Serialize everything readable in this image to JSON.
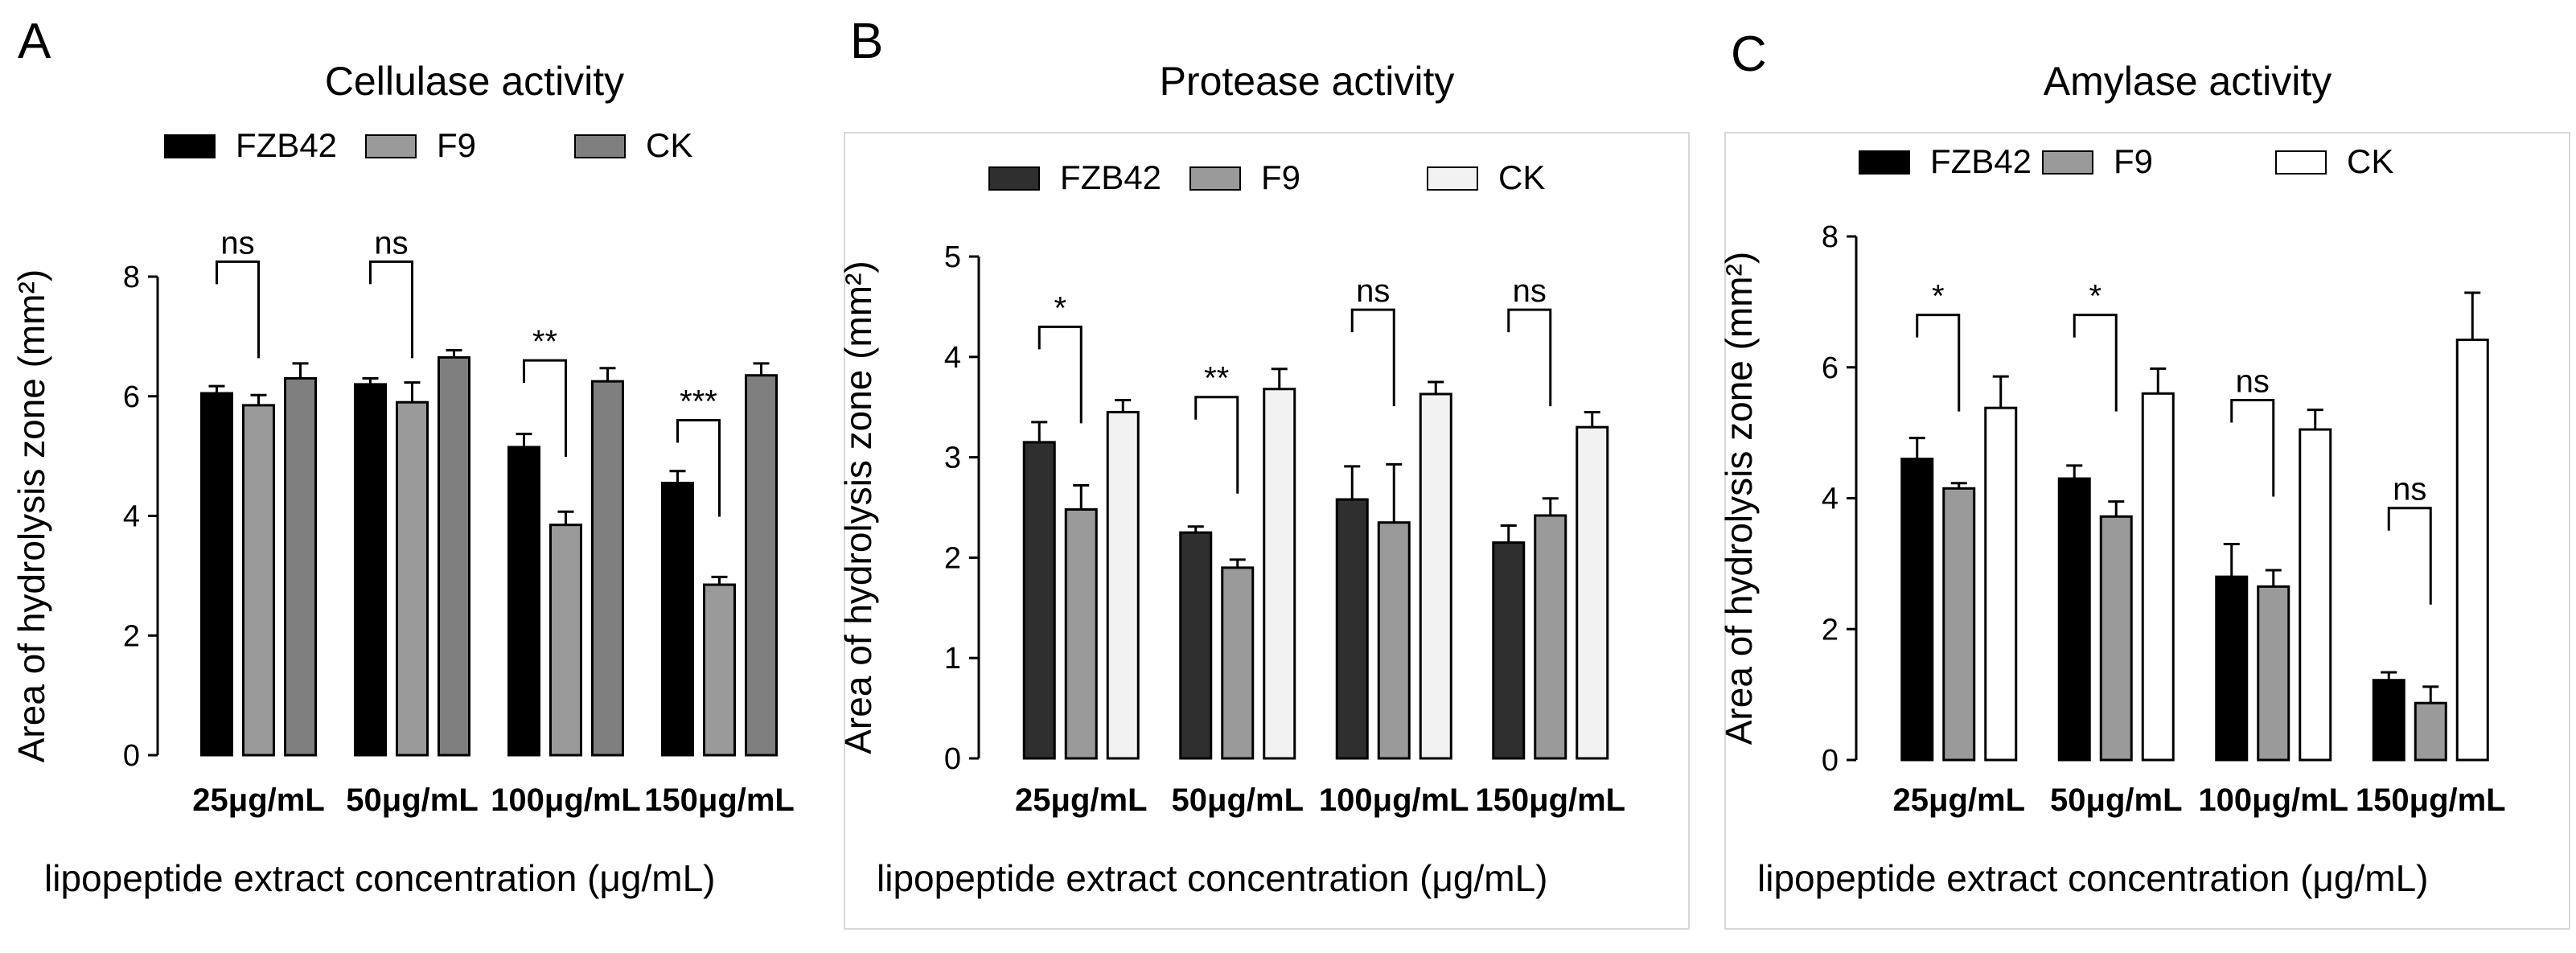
{
  "chart_data": [
    {
      "type": "bar",
      "panel_letter": "A",
      "title": "Cellulase activity",
      "xlabel": "lipopeptide extract concentration (μg/mL)",
      "ylabel": "Area of hydrolysis zone (mm²)",
      "ylim": [
        0,
        8
      ],
      "yticks": [
        "0",
        "2",
        "4",
        "6",
        "8"
      ],
      "categories": [
        "25μg/mL",
        "50μg/mL",
        "100μg/mL",
        "150μg/mL"
      ],
      "legend": [
        "FZB42",
        "F9",
        "CK"
      ],
      "series": [
        {
          "name": "FZB42",
          "color": "#000000",
          "values": [
            6.05,
            6.2,
            5.15,
            4.55
          ],
          "errors": [
            0.12,
            0.1,
            0.22,
            0.2
          ]
        },
        {
          "name": "F9",
          "color": "#9a9a9a",
          "values": [
            5.85,
            5.9,
            3.85,
            2.85
          ],
          "errors": [
            0.17,
            0.33,
            0.22,
            0.13
          ]
        },
        {
          "name": "CK",
          "color": "#7f7f7f",
          "values": [
            6.3,
            6.65,
            6.25,
            6.35
          ],
          "errors": [
            0.25,
            0.12,
            0.22,
            0.2
          ]
        }
      ],
      "significance": [
        {
          "category": 0,
          "label": "ns",
          "y": 8.25
        },
        {
          "category": 1,
          "label": "ns",
          "y": 8.25
        },
        {
          "category": 2,
          "label": "**",
          "y": 6.6
        },
        {
          "category": 3,
          "label": "***",
          "y": 5.6
        }
      ]
    },
    {
      "type": "bar",
      "panel_letter": "B",
      "title": "Protease activity",
      "xlabel": "lipopeptide extract concentration (μg/mL)",
      "ylabel": "Area of hydrolysis zone (mm²)",
      "ylim": [
        0,
        5
      ],
      "yticks": [
        "0",
        "1",
        "2",
        "3",
        "4",
        "5"
      ],
      "categories": [
        "25μg/mL",
        "50μg/mL",
        "100μg/mL",
        "150μg/mL"
      ],
      "legend": [
        "FZB42",
        "F9",
        "CK"
      ],
      "series": [
        {
          "name": "FZB42",
          "color": "#2f2f2f",
          "values": [
            3.15,
            2.25,
            2.58,
            2.15
          ],
          "errors": [
            0.2,
            0.06,
            0.33,
            0.17
          ]
        },
        {
          "name": "F9",
          "color": "#9a9a9a",
          "values": [
            2.48,
            1.9,
            2.35,
            2.42
          ],
          "errors": [
            0.24,
            0.08,
            0.58,
            0.17
          ]
        },
        {
          "name": "CK",
          "color": "#f2f2f2",
          "values": [
            3.45,
            3.68,
            3.63,
            3.3
          ],
          "errors": [
            0.12,
            0.2,
            0.12,
            0.15
          ]
        }
      ],
      "significance": [
        {
          "category": 0,
          "label": "*",
          "y": 4.3
        },
        {
          "category": 1,
          "label": "**",
          "y": 3.6
        },
        {
          "category": 2,
          "label": "ns",
          "y": 4.47
        },
        {
          "category": 3,
          "label": "ns",
          "y": 4.47
        }
      ]
    },
    {
      "type": "bar",
      "panel_letter": "C",
      "title": "Amylase activity",
      "xlabel": "lipopeptide extract concentration (μg/mL)",
      "ylabel": "Area of hydrolysis zone (mm²)",
      "ylim": [
        0,
        8
      ],
      "yticks": [
        "0",
        "2",
        "4",
        "6",
        "8"
      ],
      "categories": [
        "25μg/mL",
        "50μg/mL",
        "100μg/mL",
        "150μg/mL"
      ],
      "legend": [
        "FZB42",
        "F9",
        "CK"
      ],
      "series": [
        {
          "name": "FZB42",
          "color": "#000000",
          "values": [
            4.6,
            4.3,
            2.8,
            1.22
          ],
          "errors": [
            0.32,
            0.2,
            0.5,
            0.12
          ]
        },
        {
          "name": "F9",
          "color": "#9a9a9a",
          "values": [
            4.15,
            3.72,
            2.65,
            0.87
          ],
          "errors": [
            0.08,
            0.23,
            0.25,
            0.25
          ]
        },
        {
          "name": "CK",
          "color": "#ffffff",
          "values": [
            5.38,
            5.6,
            5.05,
            6.42
          ],
          "errors": [
            0.48,
            0.38,
            0.3,
            0.72
          ]
        }
      ],
      "significance": [
        {
          "category": 0,
          "label": "*",
          "y": 6.8
        },
        {
          "category": 1,
          "label": "*",
          "y": 6.8
        },
        {
          "category": 2,
          "label": "ns",
          "y": 5.5
        },
        {
          "category": 3,
          "label": "ns",
          "y": 3.85
        }
      ]
    }
  ]
}
